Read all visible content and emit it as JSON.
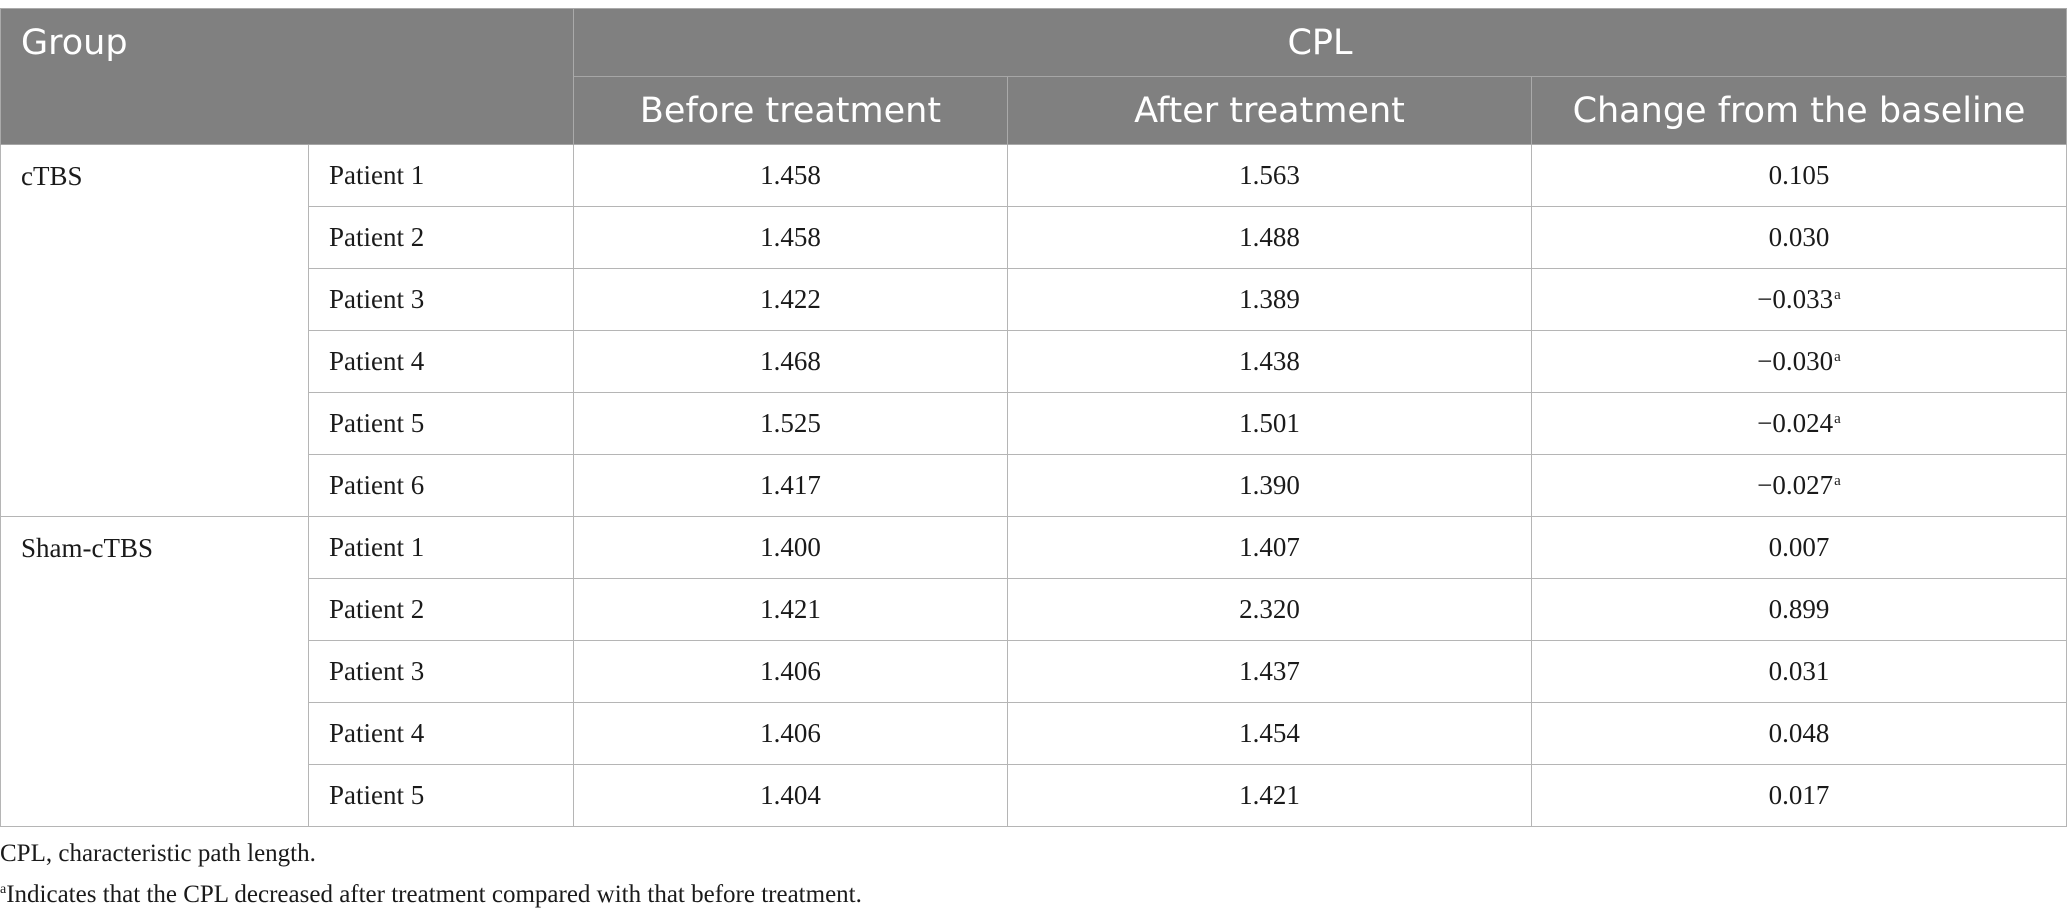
{
  "header": {
    "group": "Group",
    "cpl": "CPL",
    "before": "Before treatment",
    "after": "After treatment",
    "change": "Change from the baseline"
  },
  "groups": [
    {
      "name": "cTBS",
      "rows": [
        {
          "patient": "Patient 1",
          "before": "1.458",
          "after": "1.563",
          "change": "0.105",
          "mark": ""
        },
        {
          "patient": "Patient 2",
          "before": "1.458",
          "after": "1.488",
          "change": "0.030",
          "mark": ""
        },
        {
          "patient": "Patient 3",
          "before": "1.422",
          "after": "1.389",
          "change": "−0.033",
          "mark": "a"
        },
        {
          "patient": "Patient 4",
          "before": "1.468",
          "after": "1.438",
          "change": "−0.030",
          "mark": "a"
        },
        {
          "patient": "Patient 5",
          "before": "1.525",
          "after": "1.501",
          "change": "−0.024",
          "mark": "a"
        },
        {
          "patient": "Patient 6",
          "before": "1.417",
          "after": "1.390",
          "change": "−0.027",
          "mark": "a"
        }
      ]
    },
    {
      "name": "Sham-cTBS",
      "rows": [
        {
          "patient": "Patient 1",
          "before": "1.400",
          "after": "1.407",
          "change": "0.007",
          "mark": ""
        },
        {
          "patient": "Patient 2",
          "before": "1.421",
          "after": "2.320",
          "change": "0.899",
          "mark": ""
        },
        {
          "patient": "Patient 3",
          "before": "1.406",
          "after": "1.437",
          "change": "0.031",
          "mark": ""
        },
        {
          "patient": "Patient 4",
          "before": "1.406",
          "after": "1.454",
          "change": "0.048",
          "mark": ""
        },
        {
          "patient": "Patient 5",
          "before": "1.404",
          "after": "1.421",
          "change": "0.017",
          "mark": ""
        }
      ]
    }
  ],
  "footnotes": {
    "abbrev": "CPL, characteristic path length.",
    "a_mark": "a",
    "a_text": "Indicates that the CPL decreased after treatment compared with that before treatment."
  }
}
